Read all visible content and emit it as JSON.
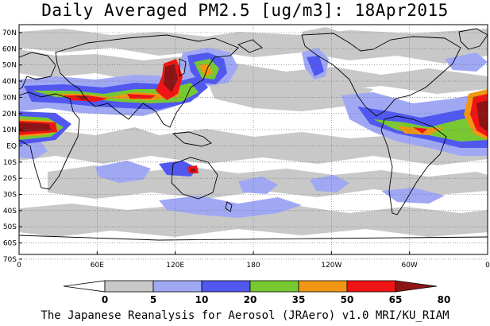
{
  "title": "Daily Averaged PM2.5 [ug/m3]: 18Apr2015",
  "footer": "The Japanese Reanalysis for Aerosol (JRAero) v1.0 MRI/KU_RIAM",
  "lat_labels": [
    "70N",
    "60N",
    "50N",
    "40N",
    "30N",
    "20N",
    "10N",
    "EQ",
    "10S",
    "20S",
    "30S",
    "40S",
    "50S",
    "60S",
    "70S"
  ],
  "lon_labels": [
    "0",
    "60E",
    "120E",
    "180",
    "120W",
    "60W",
    "0"
  ],
  "colorbar": {
    "labels": [
      "0",
      "5",
      "10",
      "20",
      "35",
      "50",
      "65",
      "80"
    ],
    "colors": [
      "#ffffff",
      "#c8c8c8",
      "#a0a8f4",
      "#5058f0",
      "#78c832",
      "#f09614",
      "#f01414",
      "#8c1414"
    ]
  },
  "legend": {
    "items": [
      {
        "range": "0-5",
        "color": "#ffffff"
      },
      {
        "range": "5-10",
        "color": "#c8c8c8"
      },
      {
        "range": "10-20",
        "color": "#a0a8f4"
      },
      {
        "range": "20-35",
        "color": "#5058f0"
      },
      {
        "range": "35-50",
        "color": "#78c832"
      },
      {
        "range": "50-65",
        "color": "#f09614"
      },
      {
        "range": "65-80",
        "color": "#f01414"
      },
      {
        "range": ">80",
        "color": "#8c1414"
      }
    ]
  }
}
